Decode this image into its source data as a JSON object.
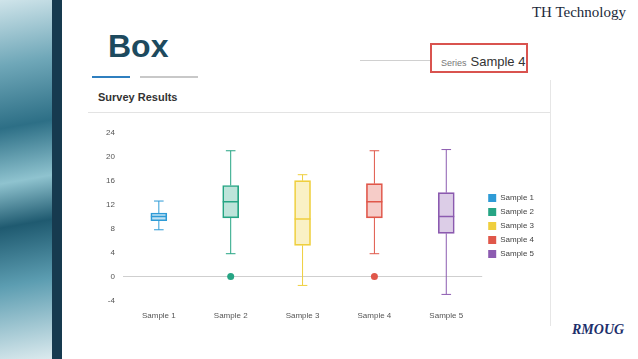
{
  "slide": {
    "brand": "TH Technology",
    "title": "Box",
    "selector_label": "Series",
    "selector_value": "Sample 4",
    "logo": "RMOUG"
  },
  "chart_data": {
    "type": "box",
    "title": "Survey Results",
    "categories": [
      "Sample 1",
      "Sample 2",
      "Sample 3",
      "Sample 4",
      "Sample 5"
    ],
    "series": [
      {
        "name": "Sample 1",
        "color": "#2e9bd6",
        "values": [
          {
            "min": 7.8,
            "q1": 9.3,
            "median": 10,
            "q3": 10.6,
            "max": 12.6,
            "outliers": []
          },
          null,
          null,
          null,
          null
        ]
      },
      {
        "name": "Sample 2",
        "color": "#26a584",
        "values": [
          null,
          {
            "min": 3.8,
            "q1": 9.8,
            "median": 12.5,
            "q3": 15.2,
            "max": 21,
            "outliers": [
              0
            ]
          },
          null,
          null,
          null
        ]
      },
      {
        "name": "Sample 3",
        "color": "#efcf3e",
        "values": [
          null,
          null,
          {
            "min": -1.5,
            "q1": 5.2,
            "median": 9.6,
            "q3": 16,
            "max": 17,
            "outliers": []
          },
          null,
          null
        ]
      },
      {
        "name": "Sample 4",
        "color": "#e0574a",
        "values": [
          null,
          null,
          null,
          {
            "min": 3.8,
            "q1": 9.8,
            "median": 12.5,
            "q3": 15.5,
            "max": 21,
            "outliers": [
              0
            ]
          },
          null
        ]
      },
      {
        "name": "Sample 5",
        "color": "#8c5bb0",
        "values": [
          null,
          null,
          null,
          null,
          {
            "min": -3,
            "q1": 7.2,
            "median": 10,
            "q3": 14,
            "max": 21.2,
            "outliers": []
          }
        ]
      }
    ],
    "ylim": [
      -4,
      24
    ],
    "yticks": [
      -4,
      0,
      4,
      8,
      12,
      16,
      20,
      24
    ],
    "grid": false,
    "legend": "right"
  }
}
